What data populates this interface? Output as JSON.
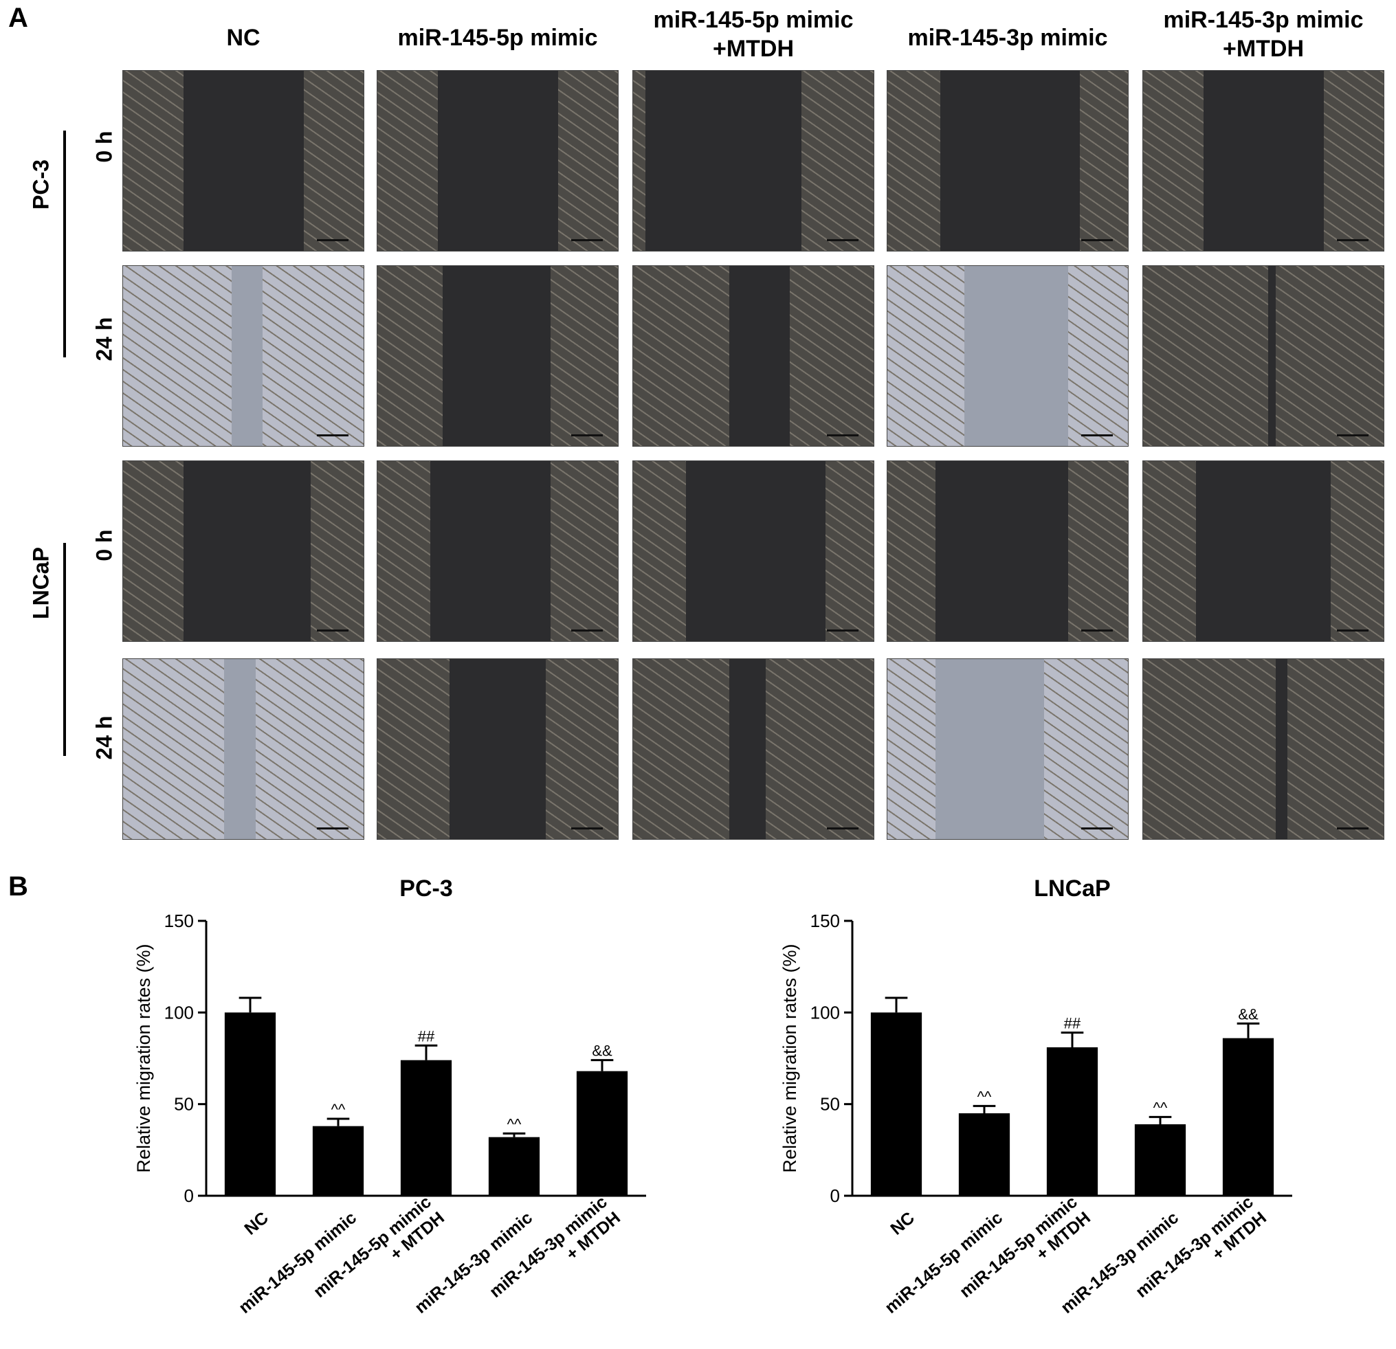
{
  "panel_a": {
    "letter": "A",
    "columns": [
      {
        "lines": [
          "NC"
        ]
      },
      {
        "lines": [
          "miR-145-5p mimic"
        ]
      },
      {
        "lines": [
          "miR-145-5p mimic",
          "+MTDH"
        ]
      },
      {
        "lines": [
          "miR-145-3p mimic"
        ]
      },
      {
        "lines": [
          "miR-145-3p mimic",
          "+MTDH"
        ]
      }
    ],
    "cell_lines": [
      "PC-3",
      "LNCaP"
    ],
    "timepoints": [
      "0 h",
      "24 h",
      "0 h",
      "24 h"
    ]
  },
  "panel_b": {
    "letter": "B"
  },
  "chart_data": [
    {
      "type": "bar",
      "title": "PC-3",
      "ylabel": "Relative migration rates (%)",
      "xlabel": "",
      "ylim": [
        0,
        150
      ],
      "yticks": [
        "0",
        "50",
        "100",
        "150"
      ],
      "categories": [
        [
          "NC"
        ],
        [
          "miR-145-5p  mimic"
        ],
        [
          "miR-145-5p mimic",
          "+ MTDH"
        ],
        [
          "miR-145-3p mimic"
        ],
        [
          "miR-145-3p mimic",
          "+ MTDH"
        ]
      ],
      "values": [
        100,
        38,
        74,
        32,
        68
      ],
      "errors": [
        8,
        4,
        8,
        2,
        6
      ],
      "annotations": [
        "",
        "^^",
        "##",
        "^^",
        "&&"
      ],
      "bar_color": "#000000"
    },
    {
      "type": "bar",
      "title": "LNCaP",
      "ylabel": "Relative migration rates (%)",
      "xlabel": "",
      "ylim": [
        0,
        150
      ],
      "yticks": [
        "0",
        "50",
        "100",
        "150"
      ],
      "categories": [
        [
          "NC"
        ],
        [
          "miR-145-5p  mimic"
        ],
        [
          "miR-145-5p mimic",
          "+ MTDH"
        ],
        [
          "miR-145-3p mimic"
        ],
        [
          "miR-145-3p mimic",
          "+ MTDH"
        ]
      ],
      "values": [
        100,
        45,
        81,
        39,
        86
      ],
      "errors": [
        8,
        4,
        8,
        4,
        8
      ],
      "annotations": [
        "",
        "^^",
        "##",
        "^^",
        "&&"
      ],
      "bar_color": "#000000"
    }
  ]
}
